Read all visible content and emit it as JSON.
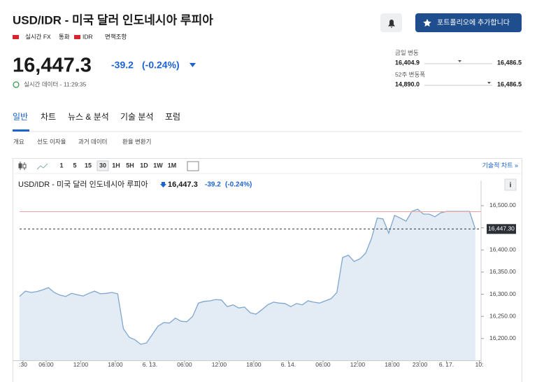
{
  "header": {
    "title": "USD/IDR - 미국 달러 인도네시아 루피아",
    "meta": [
      "실시간 FX",
      "통화",
      "IDR",
      "면책조항"
    ],
    "button": "포트폴리오에 추가합니다"
  },
  "quote": {
    "price": "16,447.3",
    "change": "-39.2",
    "change_pct": "(-0.24%)",
    "time": "실시간 데이터 - 11:29:35"
  },
  "ranges": [
    {
      "label": "금일 변동",
      "low": "16,404.9",
      "high": "16,486.5"
    },
    {
      "label": "52주 변동폭",
      "low": "14,890.0",
      "high": "16,486.5"
    }
  ],
  "tabs": [
    "일반",
    "차트",
    "뉴스 & 분석",
    "기술 분석",
    "포럼"
  ],
  "subtabs": [
    "개요",
    "선도 이자율",
    "과거 데이터",
    "환율 변환기"
  ],
  "toolbar": {
    "intervals": [
      "1",
      "5",
      "15",
      "30",
      "1H",
      "5H",
      "1D",
      "1W",
      "1M"
    ],
    "link": "기술적 차트 »"
  },
  "chart_data": {
    "type": "line",
    "legend": {
      "name": "USD/IDR - 미국 달러 인도네시아 루피아",
      "price": "16,447.3",
      "change": "-39.2",
      "change_pct": "(-0.24%)"
    },
    "watermark": "Investing",
    "watermark_suffix": ".com",
    "x": [
      0,
      1,
      2,
      3,
      4,
      5,
      6,
      7,
      8,
      9,
      10,
      11,
      12,
      13,
      14,
      15,
      16,
      17,
      18,
      19,
      20,
      21,
      22,
      23,
      24,
      25,
      26,
      27,
      28,
      29,
      30,
      31,
      32,
      33,
      34,
      35,
      36,
      37,
      38,
      39,
      40,
      41,
      42,
      43,
      44,
      45,
      46,
      47,
      48,
      49,
      50,
      51,
      52,
      53,
      54,
      55,
      56,
      57,
      58,
      59,
      60,
      61,
      62,
      63,
      64,
      65,
      66,
      67,
      68,
      69,
      70,
      71,
      72,
      73,
      74,
      75,
      76,
      77,
      78,
      79
    ],
    "values": [
      16295,
      16307,
      16304,
      16306,
      16310,
      16315,
      16304,
      16298,
      16295,
      16302,
      16299,
      16296,
      16302,
      16307,
      16301,
      16302,
      16304,
      16301,
      16222,
      16203,
      16197,
      16187,
      16190,
      16209,
      16228,
      16236,
      16235,
      16246,
      16239,
      16238,
      16250,
      16280,
      16284,
      16285,
      16288,
      16287,
      16272,
      16276,
      16269,
      16271,
      16258,
      16255,
      16265,
      16276,
      16282,
      16280,
      16279,
      16272,
      16279,
      16276,
      16285,
      16282,
      16280,
      16285,
      16290,
      16304,
      16383,
      16388,
      16374,
      16380,
      16393,
      16426,
      16472,
      16470,
      16438,
      16478,
      16472,
      16465,
      16487,
      16492,
      16481,
      16481,
      16475,
      16484,
      16487,
      16487,
      16487,
      16487,
      16487,
      16447.3
    ],
    "color": "#7fa6cf",
    "fill": "#e3ebf5",
    "xlim": [
      0,
      80
    ],
    "xticks": [
      {
        "value": 0.6,
        "label": ":30"
      },
      {
        "value": 4.6,
        "label": "06:00"
      },
      {
        "value": 10.6,
        "label": "12:00"
      },
      {
        "value": 16.6,
        "label": "18:00"
      },
      {
        "value": 22.6,
        "label": "6. 13."
      },
      {
        "value": 28.6,
        "label": "06:00"
      },
      {
        "value": 34.6,
        "label": "12:00"
      },
      {
        "value": 40.6,
        "label": "18:00"
      },
      {
        "value": 46.6,
        "label": "6. 14."
      },
      {
        "value": 52.6,
        "label": "06:00"
      },
      {
        "value": 58.6,
        "label": "12:00"
      },
      {
        "value": 64.6,
        "label": "18:00"
      },
      {
        "value": 69.4,
        "label": "23:00"
      },
      {
        "value": 74,
        "label": "6. 17."
      },
      {
        "value": 79.7,
        "label": "10:"
      }
    ],
    "ylim": [
      16150,
      16556
    ],
    "yticks": [
      {
        "value": 16200,
        "label": "16,200.00"
      },
      {
        "value": 16250,
        "label": "16,250.00"
      },
      {
        "value": 16300,
        "label": "16,300.00"
      },
      {
        "value": 16350,
        "label": "16,350.00"
      },
      {
        "value": 16400,
        "label": "16,400.00"
      },
      {
        "value": 16450,
        "label": "16,450.00"
      },
      {
        "value": 16500,
        "label": "16,500.00"
      }
    ],
    "high_line": 16486.5,
    "last_label": {
      "value": 16447.3,
      "label": "16,447.30"
    }
  }
}
